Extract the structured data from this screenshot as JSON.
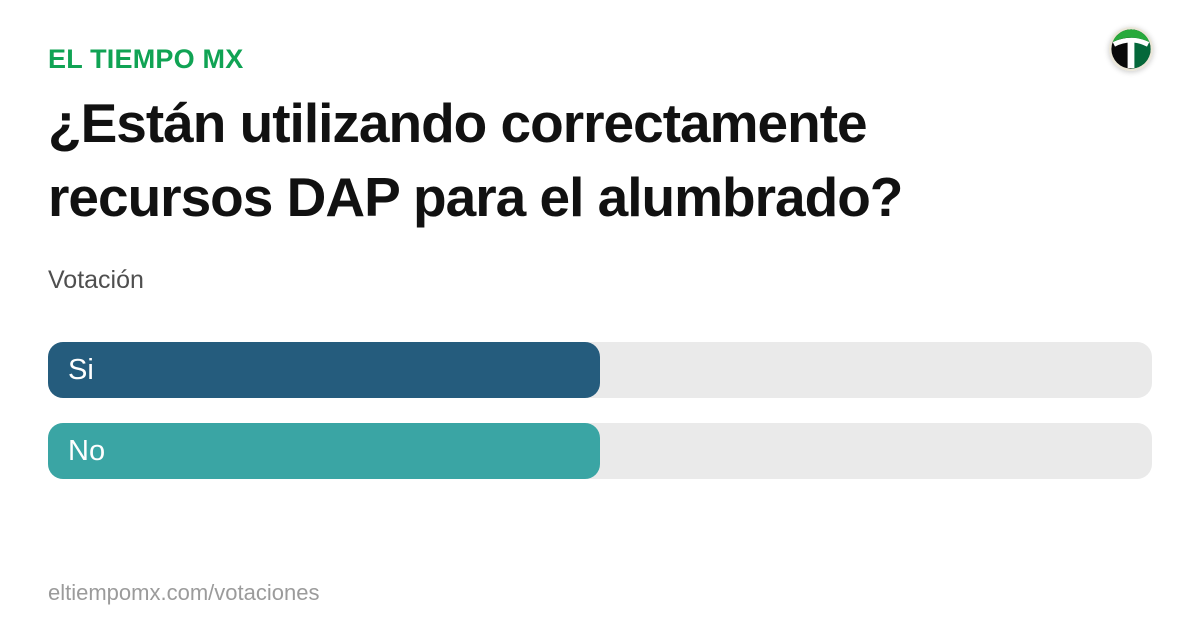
{
  "brand": {
    "label": "EL TIEMPO MX",
    "color": "#10A354"
  },
  "logo": {
    "name": "el-tiempo-mx-logo"
  },
  "headline": "¿Están utilizando correctamente recursos DAP para el alumbrado?",
  "section_label": "Votación",
  "poll": {
    "track_color": "#EAEAEA",
    "options": [
      {
        "label": "Si",
        "pct": 50,
        "color": "#255C7D"
      },
      {
        "label": "No",
        "pct": 50,
        "color": "#3AA5A4"
      }
    ]
  },
  "footer": {
    "url": "eltiempomx.com/votaciones"
  },
  "chart_data": {
    "type": "bar",
    "orientation": "horizontal",
    "title": "¿Están utilizando correctamente recursos DAP para el alumbrado?",
    "subtitle": "Votación",
    "categories": [
      "Si",
      "No"
    ],
    "values": [
      50,
      50
    ],
    "values_estimated_from_bar_length_percent": true,
    "xlim": [
      0,
      100
    ],
    "bar_colors": [
      "#255C7D",
      "#3AA5A4"
    ],
    "track_color": "#EAEAEA",
    "grid": false,
    "legend": false,
    "data_labels": false
  }
}
